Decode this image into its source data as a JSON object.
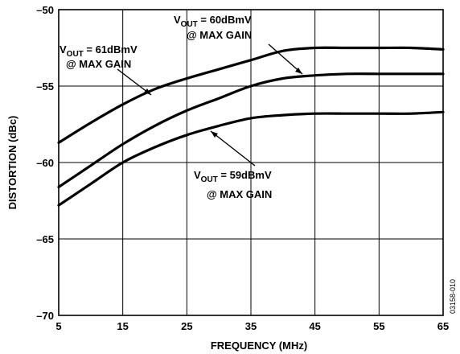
{
  "chart_data": {
    "type": "line",
    "xlabel": "FREQUENCY (MHz)",
    "ylabel": "DISTORTION (dBc)",
    "xlim": [
      5,
      65
    ],
    "ylim": [
      -70,
      -50
    ],
    "xticks": [
      "5",
      "15",
      "25",
      "35",
      "45",
      "55",
      "65"
    ],
    "yticks": [
      "–50",
      "–55",
      "–60",
      "–65",
      "–70"
    ],
    "grid": true,
    "figure_code": "03158-010",
    "series": [
      {
        "label_prefix": "V",
        "label_sub": "OUT",
        "label_value": " = 61dBmV",
        "label_line2": "@ MAX GAIN",
        "x": [
          5,
          10,
          15,
          20,
          25,
          30,
          35,
          40,
          45,
          50,
          55,
          60,
          65
        ],
        "y": [
          -58.7,
          -57.4,
          -56.2,
          -55.2,
          -54.5,
          -53.9,
          -53.3,
          -52.7,
          -52.5,
          -52.5,
          -52.5,
          -52.5,
          -52.6
        ]
      },
      {
        "label_prefix": "V",
        "label_sub": "OUT",
        "label_value": " = 60dBmV",
        "label_line2": "@ MAX GAIN",
        "x": [
          5,
          10,
          15,
          20,
          25,
          30,
          35,
          40,
          45,
          50,
          55,
          60,
          65
        ],
        "y": [
          -61.6,
          -60.2,
          -58.8,
          -57.6,
          -56.6,
          -55.8,
          -55.0,
          -54.5,
          -54.3,
          -54.2,
          -54.2,
          -54.2,
          -54.2
        ]
      },
      {
        "label_prefix": "V",
        "label_sub": "OUT",
        "label_value": " = 59dBmV",
        "label_line2": "@ MAX GAIN",
        "x": [
          5,
          10,
          15,
          20,
          25,
          30,
          35,
          40,
          45,
          50,
          55,
          60,
          65
        ],
        "y": [
          -62.8,
          -61.4,
          -60.0,
          -59.0,
          -58.2,
          -57.6,
          -57.1,
          -56.9,
          -56.8,
          -56.8,
          -56.8,
          -56.8,
          -56.7
        ]
      }
    ]
  }
}
